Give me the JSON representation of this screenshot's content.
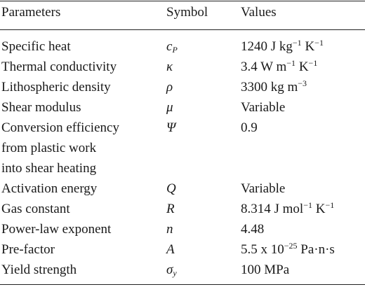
{
  "table": {
    "headers": {
      "parameters": "Parameters",
      "symbol": "Symbol",
      "values": "Values"
    },
    "rows": [
      {
        "parameter": "Specific heat",
        "symbol_main": "c",
        "symbol_sub": "P",
        "value_main": "1240 J kg",
        "value_sup1": "−1",
        "value_mid": " K",
        "value_sup2": "−1",
        "value_tail": ""
      },
      {
        "parameter": "Thermal conductivity",
        "symbol_main": "κ",
        "symbol_sub": "",
        "value_main": "3.4 W m",
        "value_sup1": "−1",
        "value_mid": " K",
        "value_sup2": "−1",
        "value_tail": ""
      },
      {
        "parameter": "Lithospheric density",
        "symbol_main": "ρ",
        "symbol_sub": "",
        "value_main": "3300 kg m",
        "value_sup1": "−3",
        "value_mid": "",
        "value_sup2": "",
        "value_tail": ""
      },
      {
        "parameter": "Shear modulus",
        "symbol_main": "μ",
        "symbol_sub": "",
        "value_main": "Variable",
        "value_sup1": "",
        "value_mid": "",
        "value_sup2": "",
        "value_tail": ""
      },
      {
        "parameter": "Conversion efficiency",
        "symbol_main": "Ψ",
        "symbol_sub": "",
        "value_main": "0.9",
        "value_sup1": "",
        "value_mid": "",
        "value_sup2": "",
        "value_tail": ""
      },
      {
        "parameter": "from plastic work",
        "symbol_main": "",
        "symbol_sub": "",
        "value_main": "",
        "value_sup1": "",
        "value_mid": "",
        "value_sup2": "",
        "value_tail": ""
      },
      {
        "parameter": "into shear heating",
        "symbol_main": "",
        "symbol_sub": "",
        "value_main": "",
        "value_sup1": "",
        "value_mid": "",
        "value_sup2": "",
        "value_tail": ""
      },
      {
        "parameter": "Activation energy",
        "symbol_main": "Q",
        "symbol_sub": "",
        "value_main": "Variable",
        "value_sup1": "",
        "value_mid": "",
        "value_sup2": "",
        "value_tail": ""
      },
      {
        "parameter": "Gas constant",
        "symbol_main": "R",
        "symbol_sub": "",
        "value_main": "8.314 J mol",
        "value_sup1": "−1",
        "value_mid": " K",
        "value_sup2": "−1",
        "value_tail": ""
      },
      {
        "parameter": "Power-law exponent",
        "symbol_main": "n",
        "symbol_sub": "",
        "value_main": "4.48",
        "value_sup1": "",
        "value_mid": "",
        "value_sup2": "",
        "value_tail": ""
      },
      {
        "parameter": "Pre-factor",
        "symbol_main": "A",
        "symbol_sub": "",
        "value_main": "5.5 x 10",
        "value_sup1": "−25",
        "value_mid": " Pa·n·s",
        "value_sup2": "",
        "value_tail": ""
      },
      {
        "parameter": "Yield strength",
        "symbol_main": "σ",
        "symbol_sub": "y",
        "value_main": "100 MPa",
        "value_sup1": "",
        "value_mid": "",
        "value_sup2": "",
        "value_tail": ""
      }
    ]
  }
}
